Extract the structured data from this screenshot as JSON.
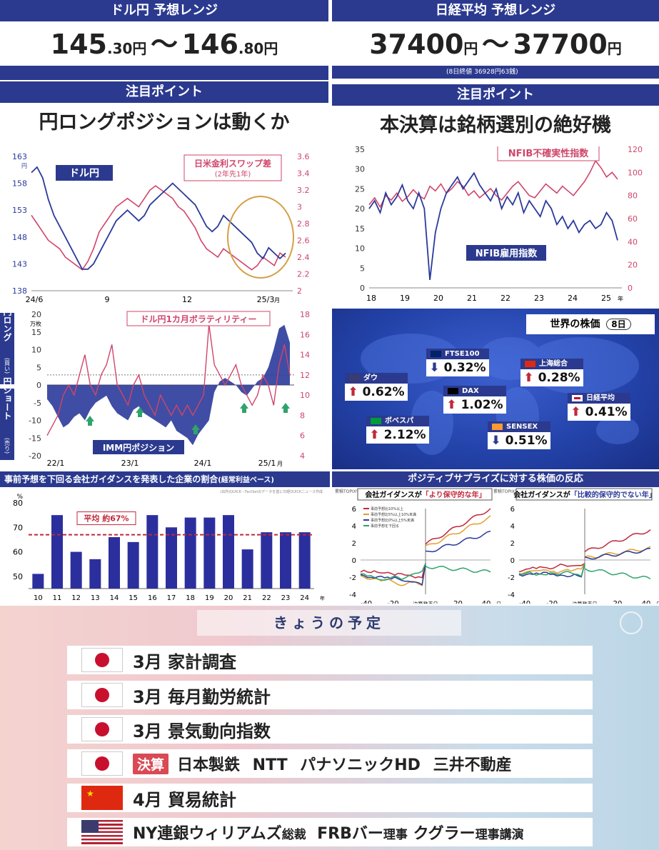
{
  "usdjpy": {
    "header": "ドル円 予想レンジ",
    "low_main": "145",
    "low_dec": ".30",
    "unit": "円",
    "sep": "～",
    "high_main": "146",
    "high_dec": ".80",
    "point_header": "注目ポイント",
    "point_text": "円ロングポジションは動くか"
  },
  "nikkei": {
    "header": "日経平均 予想レンジ",
    "low": "37400",
    "unit": "円",
    "sep": "～",
    "high": "37700",
    "note": "(8日終値 36928円63銭)",
    "point_header": "注目ポイント",
    "point_text": "本決算は銘柄選別の絶好機"
  },
  "chart_data": [
    {
      "type": "line",
      "series": [
        {
          "name": "ドル円",
          "axis": "left",
          "color": "#2b3a9a"
        },
        {
          "name": "日米金利スワップ差 (2年先1年)",
          "axis": "right",
          "color": "#d0456a"
        }
      ],
      "ylim_left": [
        138,
        163
      ],
      "ylim_right": [
        2,
        3.6
      ],
      "left_ticks": [
        "138",
        "143",
        "148",
        "153",
        "158",
        "163"
      ],
      "left_unit": "円",
      "right_ticks": [
        "2",
        "2.2",
        "2.4",
        "2.6",
        "2.8",
        "3",
        "3.2",
        "3.4",
        "3.6"
      ],
      "x_ticks": [
        "24/6",
        "9",
        "12",
        "25/3"
      ],
      "x_unit": "月",
      "label_usd": "ドル円",
      "label_swap": "日米金利スワップ差",
      "label_swap_sub": "(2年先1年)"
    },
    {
      "type": "line",
      "series": [
        {
          "name": "NFIB雇用指数",
          "axis": "left",
          "color": "#2b3a9a"
        },
        {
          "name": "NFIB不確実性指数",
          "axis": "right",
          "color": "#d0456a"
        }
      ],
      "ylim_left": [
        0,
        35
      ],
      "ylim_right": [
        0,
        120
      ],
      "left_ticks": [
        "0",
        "5",
        "10",
        "15",
        "20",
        "25",
        "30",
        "35"
      ],
      "right_ticks": [
        "0",
        "20",
        "40",
        "60",
        "80",
        "100",
        "120"
      ],
      "x_ticks": [
        "18",
        "19",
        "20",
        "21",
        "22",
        "23",
        "24",
        "25"
      ],
      "x_unit": "年",
      "label_uncert": "NFIB不確実性指数",
      "label_emp": "NFIB雇用指数"
    },
    {
      "type": "area",
      "series": [
        {
          "name": "IMM円ポジション",
          "axis": "left",
          "color": "#2b3a9a"
        },
        {
          "name": "ドル円1カ月ボラティリティー",
          "axis": "right",
          "color": "#d0456a"
        }
      ],
      "ylim_left": [
        -20,
        20
      ],
      "ylim_right": [
        4,
        18
      ],
      "left_ticks": [
        "-20",
        "-15",
        "-10",
        "-5",
        "0",
        "5",
        "10",
        "15",
        "20"
      ],
      "left_unit": "万枚",
      "right_ticks": [
        "4",
        "6",
        "8",
        "10",
        "12",
        "14",
        "16",
        "18"
      ],
      "x_ticks": [
        "22/1",
        "23/1",
        "24/1",
        "25/1"
      ],
      "x_unit": "月",
      "side_top": "円ロング",
      "side_top_sub": "(買い)",
      "side_bottom": "円ショート",
      "side_bottom_sub": "(売り)",
      "label_vol": "ドル円1カ月ボラティリティー",
      "label_imm": "IMM円ポジション"
    },
    {
      "type": "bar",
      "title": "事前予想を下回る会社ガイダンスを発表した企業の割合",
      "title_sub": "(経常利益ベース)",
      "categories": [
        "10",
        "11",
        "12",
        "13",
        "14",
        "15",
        "16",
        "17",
        "18",
        "19",
        "20",
        "21",
        "22",
        "23",
        "24"
      ],
      "x_unit": "年",
      "values": [
        51,
        75,
        60,
        57,
        66,
        64,
        75,
        70,
        74,
        74,
        75,
        61,
        68,
        68,
        68
      ],
      "ylim": [
        45,
        80
      ],
      "y_ticks": [
        "50",
        "60",
        "70",
        "80"
      ],
      "y_unit": "%",
      "average_label": "平均 約67%",
      "average": 67,
      "source": "(出所)QUICK・FactSetのデータを基に日経QUICKニュース作成"
    },
    {
      "type": "line",
      "title": "ポジティブサプライズに対する株価の反応",
      "left_title_pre": "会社ガイダンスが",
      "left_title_em": "「より保守的な年」",
      "right_title_pre": "会社ガイダンスが",
      "right_title_em": "「比較的保守的でない年」",
      "y_unit": "累積TOPIX%",
      "x_ticks": [
        "-40",
        "-20",
        "決算発表日",
        "20",
        "40"
      ],
      "x_unit": "日",
      "y_ticks": [
        "-4",
        "-2",
        "0",
        "2",
        "4",
        "6"
      ],
      "legend": [
        "事前予想比10%以上",
        "事前予想比5%以上10%未満",
        "事前予想比0%以上5%未満",
        "事前予想を下回る"
      ]
    }
  ],
  "world": {
    "title": "世界の株価",
    "date": "8日",
    "indices": [
      {
        "name": "ダウ",
        "value": "0.62%",
        "dir": "up"
      },
      {
        "name": "FTSE100",
        "value": "0.32%",
        "dir": "down"
      },
      {
        "name": "DAX",
        "value": "1.02%",
        "dir": "up"
      },
      {
        "name": "上海総合",
        "value": "0.28%",
        "dir": "up"
      },
      {
        "name": "日経平均",
        "value": "0.41%",
        "dir": "up"
      },
      {
        "name": "ボベスパ",
        "value": "2.12%",
        "dir": "up"
      },
      {
        "name": "SENSEX",
        "value": "0.51%",
        "dir": "down"
      }
    ]
  },
  "schedule": {
    "title": "きょうの予定",
    "badge": "決算",
    "items": [
      {
        "country": "japan",
        "text": "3月 家計調査"
      },
      {
        "country": "japan",
        "text": "3月 毎月勤労統計"
      },
      {
        "country": "japan",
        "text": "3月 景気動向指数"
      },
      {
        "country": "japan",
        "text": "日本製鉄 NTT パナソニックHD 三井不動産"
      },
      {
        "country": "china",
        "text": "4月 貿易統計"
      },
      {
        "country": "usa",
        "text_a": "NY連銀ウィリアムズ",
        "text_a_small": "総裁",
        "text_b": "FRBバー",
        "text_b_small": "理事",
        "text_c": "クグラー",
        "text_c_small": "理事講演"
      }
    ]
  }
}
